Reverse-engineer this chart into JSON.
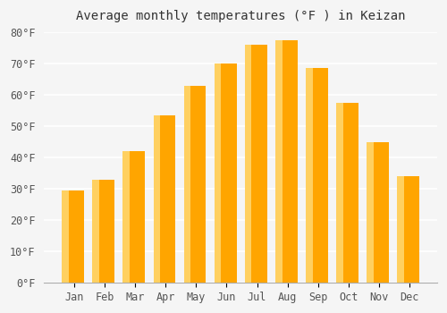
{
  "title": "Average monthly temperatures (°F ) in Keizan",
  "months": [
    "Jan",
    "Feb",
    "Mar",
    "Apr",
    "May",
    "Jun",
    "Jul",
    "Aug",
    "Sep",
    "Oct",
    "Nov",
    "Dec"
  ],
  "values": [
    29.5,
    33.0,
    42.0,
    53.5,
    63.0,
    70.0,
    76.0,
    77.5,
    68.5,
    57.5,
    45.0,
    34.0
  ],
  "bar_color_main": "#FFA500",
  "bar_color_light": "#FFD060",
  "ylim": [
    0,
    80
  ],
  "yticks": [
    0,
    10,
    20,
    30,
    40,
    50,
    60,
    70,
    80
  ],
  "ytick_labels": [
    "0°F",
    "10°F",
    "20°F",
    "30°F",
    "40°F",
    "50°F",
    "60°F",
    "70°F",
    "80°F"
  ],
  "background_color": "#f5f5f5",
  "grid_color": "#ffffff",
  "title_fontsize": 10,
  "tick_fontsize": 8.5,
  "bar_edge_color": "none"
}
